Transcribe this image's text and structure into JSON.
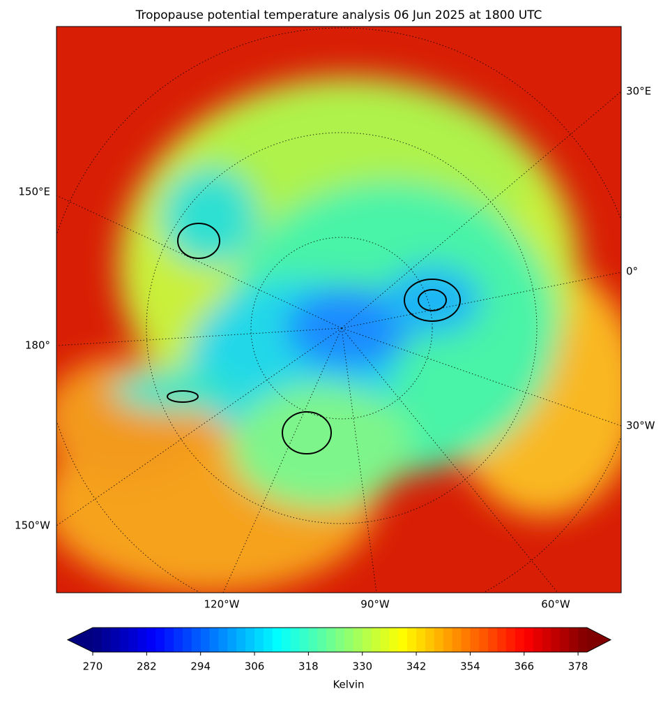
{
  "title": "Tropopause potential temperature analysis 06 Jun 2025 at 1800 UTC",
  "map": {
    "lon_labels": [
      "30°E",
      "150°E",
      "0°",
      "180°",
      "30°W",
      "150°W",
      "120°W",
      "90°W",
      "60°W"
    ]
  },
  "colorbar": {
    "label": "Kelvin",
    "colormap": "jet",
    "clim": [
      270,
      380
    ],
    "ticks": [
      270,
      282,
      294,
      306,
      318,
      330,
      342,
      354,
      366,
      378
    ]
  }
}
